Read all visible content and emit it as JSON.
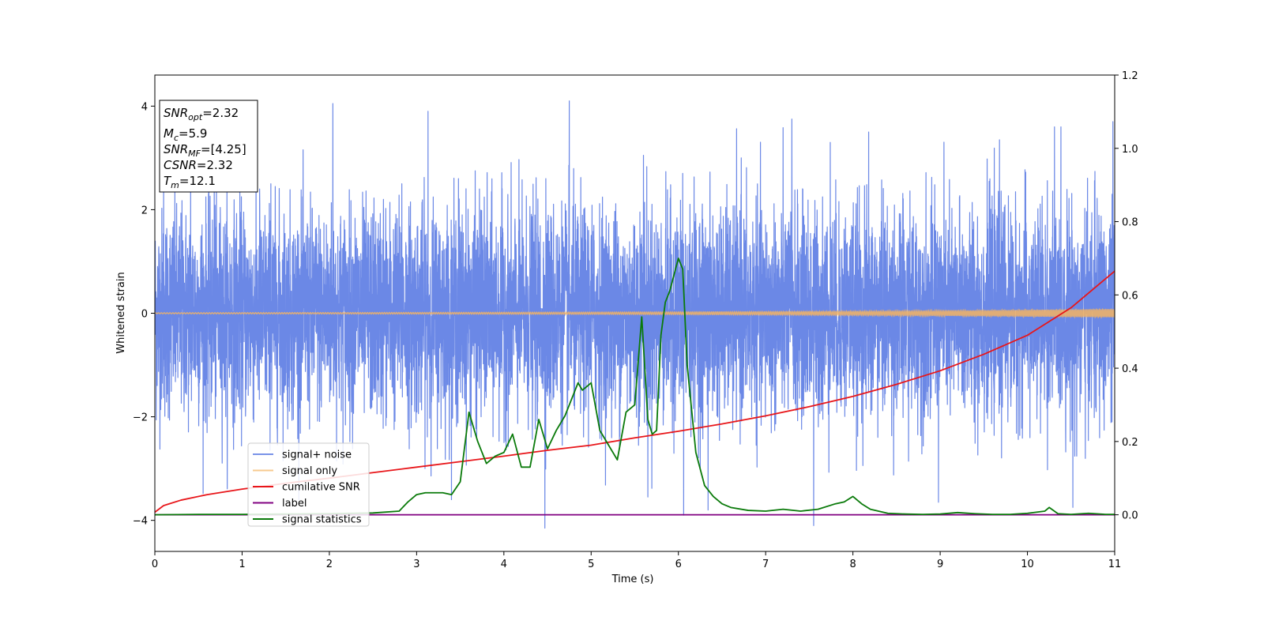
{
  "chart_data": {
    "type": "line",
    "xlabel": "Time (s)",
    "ylabel": "Whitened strain",
    "xlim": [
      0,
      11
    ],
    "ylim": [
      -4.6,
      4.6
    ],
    "ylim_right": [
      -0.1,
      1.2
    ],
    "x_ticks": [
      0,
      1,
      2,
      3,
      4,
      5,
      6,
      7,
      8,
      9,
      10,
      11
    ],
    "y_ticks": [
      -4,
      -2,
      0,
      2,
      4
    ],
    "y_ticks_right": [
      "0.0",
      "0.2",
      "0.4",
      "0.6",
      "0.8",
      "1.0",
      "1.2"
    ],
    "legend_position": "lower-left",
    "colors": {
      "signal_noise": "#6b88e6",
      "signal_only": "#f5b461",
      "cumulative_snr": "#e8161a",
      "label": "#800080",
      "signal_statistics": "#0a7a0a"
    },
    "series": [
      {
        "name": "signal+ noise",
        "axis": "left",
        "description_free": true,
        "noise_sigma": 1.0,
        "x": [
          0.1,
          0.41,
          0.68,
          1.2,
          1.33,
          2.04,
          2.62,
          2.83,
          3.13,
          3.48,
          3.72,
          4.47,
          4.48,
          4.75,
          5.6,
          5.65,
          6.05,
          6.06,
          6.34,
          6.72,
          7.3,
          7.55,
          7.74,
          8.18,
          8.98,
          9.68,
          10.31,
          10.52,
          10.98
        ],
        "y": [
          2.7,
          2.7,
          2.7,
          2.4,
          2.5,
          4.05,
          2.2,
          2.5,
          3.9,
          2.6,
          2.4,
          -4.15,
          2.6,
          4.1,
          3.05,
          -3.55,
          2.7,
          -3.9,
          -3.8,
          3.0,
          3.75,
          -4.1,
          3.3,
          3.5,
          -3.65,
          3.35,
          3.6,
          -3.75,
          3.7
        ]
      },
      {
        "name": "signal only",
        "axis": "left",
        "x": [
          0,
          1,
          2,
          3,
          4,
          5,
          6,
          7,
          8,
          9,
          10,
          11
        ],
        "amplitude": [
          0.01,
          0.012,
          0.014,
          0.016,
          0.019,
          0.022,
          0.026,
          0.032,
          0.04,
          0.05,
          0.065,
          0.08
        ]
      },
      {
        "name": "cumilative SNR",
        "axis": "right",
        "x": [
          0,
          0.1,
          0.3,
          0.6,
          1,
          1.5,
          2,
          2.5,
          3,
          3.5,
          4,
          4.5,
          5,
          5.5,
          6,
          6.5,
          7,
          7.5,
          8,
          8.5,
          9,
          9.5,
          10,
          10.5,
          11
        ],
        "values": [
          0.007,
          0.025,
          0.04,
          0.055,
          0.07,
          0.086,
          0.1,
          0.115,
          0.13,
          0.145,
          0.16,
          0.176,
          0.19,
          0.21,
          0.228,
          0.248,
          0.27,
          0.295,
          0.323,
          0.356,
          0.393,
          0.438,
          0.49,
          0.565,
          0.665
        ]
      },
      {
        "name": "label",
        "axis": "right",
        "x": [
          0,
          11
        ],
        "values": [
          0,
          0
        ]
      },
      {
        "name": "signal statistics",
        "axis": "right",
        "x": [
          0,
          0.5,
          1,
          1.5,
          2,
          2.5,
          2.8,
          2.9,
          3.0,
          3.1,
          3.2,
          3.3,
          3.4,
          3.5,
          3.6,
          3.7,
          3.8,
          3.9,
          4.0,
          4.1,
          4.2,
          4.3,
          4.4,
          4.5,
          4.6,
          4.7,
          4.8,
          4.85,
          4.9,
          5.0,
          5.1,
          5.2,
          5.3,
          5.4,
          5.5,
          5.58,
          5.65,
          5.7,
          5.75,
          5.8,
          5.85,
          5.9,
          6.0,
          6.05,
          6.1,
          6.2,
          6.3,
          6.4,
          6.5,
          6.6,
          6.8,
          7.0,
          7.2,
          7.4,
          7.6,
          7.8,
          7.9,
          8.0,
          8.1,
          8.2,
          8.4,
          8.6,
          8.8,
          9.0,
          9.2,
          9.4,
          9.6,
          9.8,
          10.0,
          10.2,
          10.25,
          10.35,
          10.5,
          10.7,
          10.9,
          11.0
        ],
        "values": [
          0,
          0.001,
          0.001,
          0.002,
          0.003,
          0.005,
          0.01,
          0.035,
          0.055,
          0.06,
          0.06,
          0.06,
          0.055,
          0.09,
          0.28,
          0.2,
          0.14,
          0.16,
          0.17,
          0.22,
          0.13,
          0.13,
          0.26,
          0.18,
          0.23,
          0.27,
          0.33,
          0.36,
          0.34,
          0.36,
          0.23,
          0.19,
          0.15,
          0.28,
          0.3,
          0.54,
          0.26,
          0.22,
          0.23,
          0.49,
          0.58,
          0.61,
          0.7,
          0.67,
          0.41,
          0.17,
          0.08,
          0.05,
          0.03,
          0.02,
          0.012,
          0.01,
          0.015,
          0.01,
          0.015,
          0.03,
          0.035,
          0.05,
          0.03,
          0.015,
          0.004,
          0.002,
          0.001,
          0.002,
          0.006,
          0.003,
          0.001,
          0.001,
          0.004,
          0.01,
          0.02,
          0.003,
          0.001,
          0.004,
          0.001,
          0.001
        ]
      }
    ],
    "annotation": {
      "lines": [
        {
          "main": "SNR",
          "sub": "opt",
          "rest": "=2.32"
        },
        {
          "main": "M",
          "sub": "c",
          "rest": "=5.9"
        },
        {
          "main": "SNR",
          "sub": "MF",
          "rest": "=[4.25]"
        },
        {
          "main": "CSNR",
          "sub": "",
          "rest": "=2.32"
        },
        {
          "main": "T",
          "sub": "m",
          "rest": "=12.1"
        }
      ]
    }
  }
}
